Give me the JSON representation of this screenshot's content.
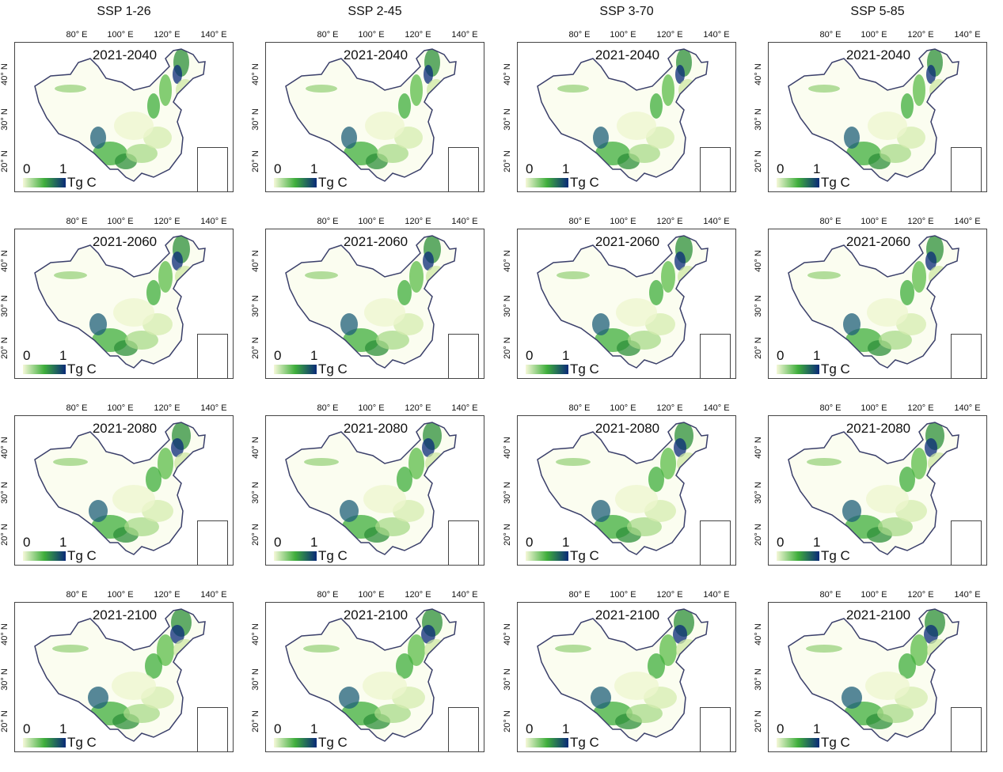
{
  "scenarios": [
    "SSP 1-26",
    "SSP 2-45",
    "SSP 3-70",
    "SSP 5-85"
  ],
  "periods": [
    "2021-2040",
    "2021-2060",
    "2021-2080",
    "2021-2100"
  ],
  "lon_labels": [
    "80° E",
    "100° E",
    "120° E",
    "140° E"
  ],
  "lat_labels": [
    "40° N",
    "30° N",
    "20° N"
  ],
  "colorbar": {
    "min": "0",
    "max": "1",
    "unit": "Tg C",
    "colors": [
      "#f5f8d8",
      "#3fae3c",
      "#0a2a78"
    ]
  }
}
